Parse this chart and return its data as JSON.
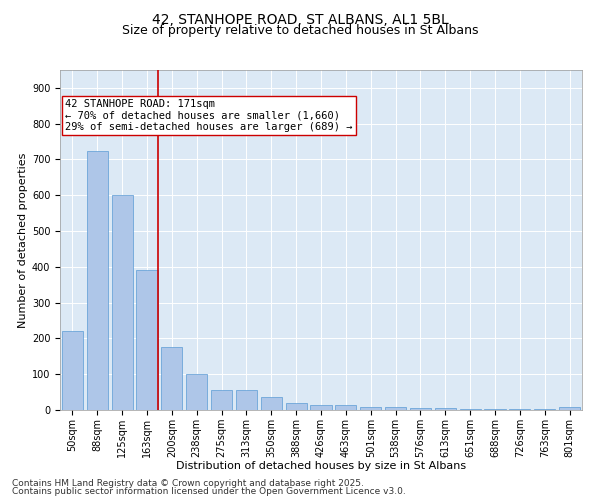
{
  "title1": "42, STANHOPE ROAD, ST ALBANS, AL1 5BL",
  "title2": "Size of property relative to detached houses in St Albans",
  "xlabel": "Distribution of detached houses by size in St Albans",
  "ylabel": "Number of detached properties",
  "categories": [
    "50sqm",
    "88sqm",
    "125sqm",
    "163sqm",
    "200sqm",
    "238sqm",
    "275sqm",
    "313sqm",
    "350sqm",
    "388sqm",
    "426sqm",
    "463sqm",
    "501sqm",
    "538sqm",
    "576sqm",
    "613sqm",
    "651sqm",
    "688sqm",
    "726sqm",
    "763sqm",
    "801sqm"
  ],
  "values": [
    220,
    725,
    600,
    390,
    175,
    100,
    55,
    55,
    35,
    20,
    15,
    15,
    8,
    8,
    5,
    5,
    3,
    3,
    3,
    3,
    8
  ],
  "bar_color": "#aec6e8",
  "bar_edge_color": "#5b9bd5",
  "vline_x_index": 3,
  "vline_color": "#cc0000",
  "annotation_text": "42 STANHOPE ROAD: 171sqm\n← 70% of detached houses are smaller (1,660)\n29% of semi-detached houses are larger (689) →",
  "annotation_box_color": "#ffffff",
  "annotation_box_edge": "#cc0000",
  "ylim": [
    0,
    950
  ],
  "yticks": [
    0,
    100,
    200,
    300,
    400,
    500,
    600,
    700,
    800,
    900
  ],
  "background_color": "#dce9f5",
  "footer1": "Contains HM Land Registry data © Crown copyright and database right 2025.",
  "footer2": "Contains public sector information licensed under the Open Government Licence v3.0.",
  "title_fontsize": 10,
  "subtitle_fontsize": 9,
  "xlabel_fontsize": 8,
  "ylabel_fontsize": 8,
  "tick_fontsize": 7,
  "annotation_fontsize": 7.5,
  "footer_fontsize": 6.5
}
